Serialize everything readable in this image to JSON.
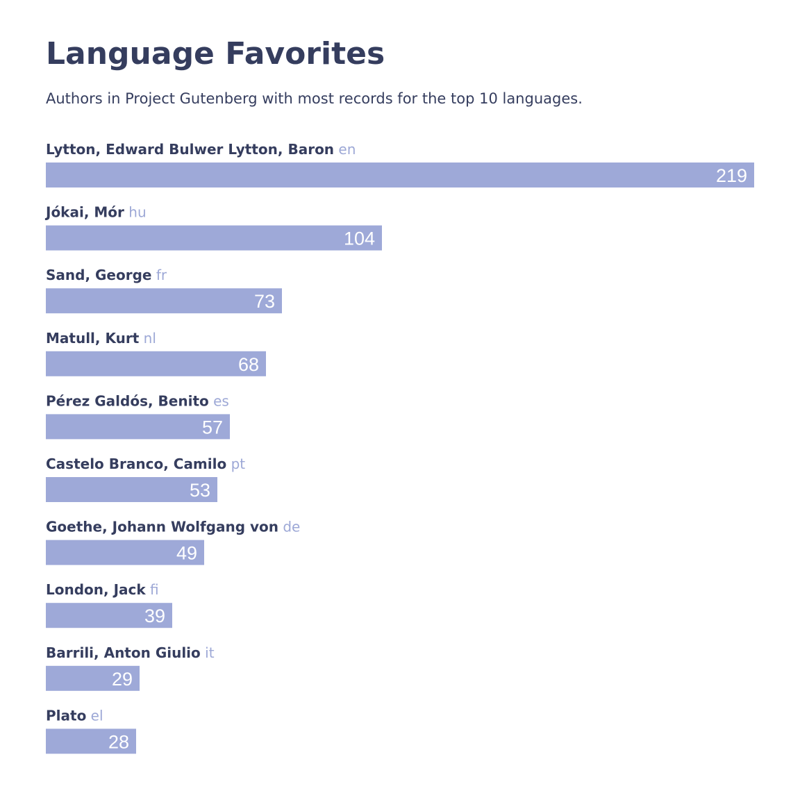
{
  "title": "Language Favorites",
  "subtitle": "Authors in Project Gutenberg with most records for the top 10 languages.",
  "colors": {
    "bar": "#9ea9d8",
    "name_text": "#353d5e",
    "lang_text": "#9da8d6",
    "value_text": "#ffffff"
  },
  "chart_data": {
    "type": "bar",
    "orientation": "horizontal",
    "title": "Language Favorites",
    "subtitle": "Authors in Project Gutenberg with most records for the top 10 languages.",
    "xlim": [
      0,
      219
    ],
    "grid": false,
    "legend": "none",
    "categories": [
      "Lytton, Edward Bulwer Lytton, Baron",
      "Jókai, Mór",
      "Sand, George",
      "Matull, Kurt",
      "Pérez Galdós, Benito",
      "Castelo Branco, Camilo",
      "Goethe, Johann Wolfgang von",
      "London, Jack",
      "Barrili, Anton Giulio",
      "Plato"
    ],
    "languages": [
      "en",
      "hu",
      "fr",
      "nl",
      "es",
      "pt",
      "de",
      "fi",
      "it",
      "el"
    ],
    "values": [
      219,
      104,
      73,
      68,
      57,
      53,
      49,
      39,
      29,
      28
    ]
  }
}
